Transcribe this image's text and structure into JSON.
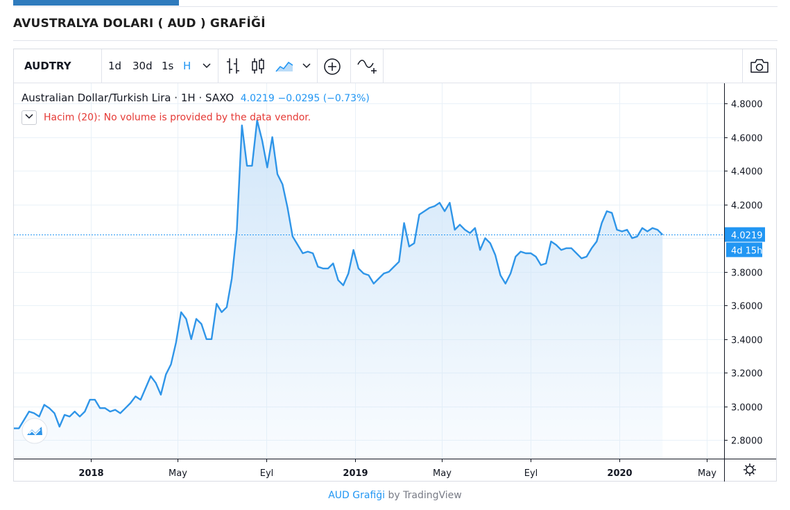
{
  "page": {
    "title": "AVUSTRALYA DOLARI ( AUD ) GRAFİĞİ"
  },
  "toolbar": {
    "symbol": "AUDTRY",
    "intervals": [
      "1d",
      "30d",
      "1s",
      "H"
    ],
    "active_interval": "H"
  },
  "legend": {
    "name": "Australian Dollar/Turkish Lira",
    "sep1": "·",
    "interval": "1H",
    "sep2": "·",
    "exchange": "SAXO",
    "last": "4.0219",
    "change": "−0.0295 (−0.73%)"
  },
  "volume": {
    "label": "Hacim (20): No volume is provided by the data vendor.",
    "toggle_icon": "chevron-down"
  },
  "attribution": {
    "link": "AUD Grafiği",
    "by": " by TradingView"
  },
  "colors": {
    "line": "#2f95e8",
    "accent": "#2196f3",
    "warning": "#e53935",
    "grid": "#e9f1f8"
  },
  "chart_data": {
    "type": "area",
    "title": "",
    "xlabel": "",
    "ylabel": "",
    "x_axis": {
      "ticks": [
        {
          "date": "2018-01-01",
          "label": "2018",
          "bold": true
        },
        {
          "date": "2018-05-01",
          "label": "May",
          "bold": false
        },
        {
          "date": "2018-09-01",
          "label": "Eyl",
          "bold": false
        },
        {
          "date": "2019-01-01",
          "label": "2019",
          "bold": true
        },
        {
          "date": "2019-05-01",
          "label": "May",
          "bold": false
        },
        {
          "date": "2019-09-01",
          "label": "Eyl",
          "bold": false
        },
        {
          "date": "2020-01-01",
          "label": "2020",
          "bold": true
        },
        {
          "date": "2020-05-01",
          "label": "May",
          "bold": false
        }
      ],
      "range": [
        "2017-09-17",
        "2020-05-25"
      ]
    },
    "y_axis": {
      "ticks": [
        "2.8000",
        "3.0000",
        "3.2000",
        "3.4000",
        "3.6000",
        "3.8000",
        "4.0000",
        "4.2000",
        "4.4000",
        "4.6000",
        "4.8000"
      ],
      "range": [
        2.69,
        4.92
      ]
    },
    "last_value": {
      "value": 4.0219,
      "label": "4.0219",
      "countdown": "4d 15h"
    },
    "series": [
      {
        "points": [
          [
            "2017-09-17",
            2.87
          ],
          [
            "2017-09-24",
            2.87
          ],
          [
            "2017-10-01",
            2.92
          ],
          [
            "2017-10-08",
            2.97
          ],
          [
            "2017-10-15",
            2.96
          ],
          [
            "2017-10-22",
            2.94
          ],
          [
            "2017-10-29",
            3.01
          ],
          [
            "2017-11-05",
            2.99
          ],
          [
            "2017-11-12",
            2.96
          ],
          [
            "2017-11-19",
            2.88
          ],
          [
            "2017-11-26",
            2.95
          ],
          [
            "2017-12-03",
            2.94
          ],
          [
            "2017-12-10",
            2.97
          ],
          [
            "2017-12-17",
            2.94
          ],
          [
            "2017-12-24",
            2.97
          ],
          [
            "2017-12-31",
            3.04
          ],
          [
            "2018-01-07",
            3.04
          ],
          [
            "2018-01-14",
            2.99
          ],
          [
            "2018-01-21",
            2.99
          ],
          [
            "2018-01-28",
            2.97
          ],
          [
            "2018-02-04",
            2.98
          ],
          [
            "2018-02-11",
            2.96
          ],
          [
            "2018-02-18",
            2.99
          ],
          [
            "2018-02-25",
            3.02
          ],
          [
            "2018-03-04",
            3.06
          ],
          [
            "2018-03-11",
            3.04
          ],
          [
            "2018-03-18",
            3.11
          ],
          [
            "2018-03-25",
            3.18
          ],
          [
            "2018-04-01",
            3.14
          ],
          [
            "2018-04-08",
            3.07
          ],
          [
            "2018-04-15",
            3.19
          ],
          [
            "2018-04-22",
            3.25
          ],
          [
            "2018-04-29",
            3.38
          ],
          [
            "2018-05-06",
            3.56
          ],
          [
            "2018-05-13",
            3.52
          ],
          [
            "2018-05-20",
            3.4
          ],
          [
            "2018-05-27",
            3.52
          ],
          [
            "2018-06-03",
            3.49
          ],
          [
            "2018-06-10",
            3.4
          ],
          [
            "2018-06-17",
            3.4
          ],
          [
            "2018-06-24",
            3.61
          ],
          [
            "2018-07-01",
            3.56
          ],
          [
            "2018-07-08",
            3.59
          ],
          [
            "2018-07-15",
            3.76
          ],
          [
            "2018-07-22",
            4.05
          ],
          [
            "2018-07-29",
            4.67
          ],
          [
            "2018-08-05",
            4.43
          ],
          [
            "2018-08-12",
            4.43
          ],
          [
            "2018-08-19",
            4.7
          ],
          [
            "2018-08-26",
            4.58
          ],
          [
            "2018-09-02",
            4.42
          ],
          [
            "2018-09-09",
            4.6
          ],
          [
            "2018-09-16",
            4.38
          ],
          [
            "2018-09-23",
            4.32
          ],
          [
            "2018-09-30",
            4.18
          ],
          [
            "2018-10-07",
            4.01
          ],
          [
            "2018-10-14",
            3.96
          ],
          [
            "2018-10-21",
            3.91
          ],
          [
            "2018-10-28",
            3.92
          ],
          [
            "2018-11-04",
            3.91
          ],
          [
            "2018-11-11",
            3.83
          ],
          [
            "2018-11-18",
            3.82
          ],
          [
            "2018-11-25",
            3.82
          ],
          [
            "2018-12-02",
            3.85
          ],
          [
            "2018-12-09",
            3.75
          ],
          [
            "2018-12-16",
            3.72
          ],
          [
            "2018-12-23",
            3.79
          ],
          [
            "2018-12-30",
            3.93
          ],
          [
            "2019-01-06",
            3.82
          ],
          [
            "2019-01-13",
            3.79
          ],
          [
            "2019-01-20",
            3.78
          ],
          [
            "2019-01-27",
            3.73
          ],
          [
            "2019-02-03",
            3.76
          ],
          [
            "2019-02-10",
            3.79
          ],
          [
            "2019-02-17",
            3.8
          ],
          [
            "2019-02-24",
            3.83
          ],
          [
            "2019-03-03",
            3.86
          ],
          [
            "2019-03-10",
            4.09
          ],
          [
            "2019-03-17",
            3.95
          ],
          [
            "2019-03-24",
            3.97
          ],
          [
            "2019-03-31",
            4.14
          ],
          [
            "2019-04-07",
            4.16
          ],
          [
            "2019-04-14",
            4.18
          ],
          [
            "2019-04-21",
            4.19
          ],
          [
            "2019-04-28",
            4.21
          ],
          [
            "2019-05-05",
            4.16
          ],
          [
            "2019-05-12",
            4.21
          ],
          [
            "2019-05-19",
            4.05
          ],
          [
            "2019-05-26",
            4.08
          ],
          [
            "2019-06-02",
            4.05
          ],
          [
            "2019-06-09",
            4.03
          ],
          [
            "2019-06-16",
            4.06
          ],
          [
            "2019-06-23",
            3.93
          ],
          [
            "2019-06-30",
            4.0
          ],
          [
            "2019-07-07",
            3.97
          ],
          [
            "2019-07-14",
            3.9
          ],
          [
            "2019-07-21",
            3.78
          ],
          [
            "2019-07-28",
            3.73
          ],
          [
            "2019-08-04",
            3.79
          ],
          [
            "2019-08-11",
            3.89
          ],
          [
            "2019-08-18",
            3.92
          ],
          [
            "2019-08-25",
            3.91
          ],
          [
            "2019-09-01",
            3.91
          ],
          [
            "2019-09-08",
            3.89
          ],
          [
            "2019-09-15",
            3.84
          ],
          [
            "2019-09-22",
            3.85
          ],
          [
            "2019-09-29",
            3.98
          ],
          [
            "2019-10-06",
            3.96
          ],
          [
            "2019-10-13",
            3.93
          ],
          [
            "2019-10-20",
            3.94
          ],
          [
            "2019-10-27",
            3.94
          ],
          [
            "2019-11-03",
            3.91
          ],
          [
            "2019-11-10",
            3.88
          ],
          [
            "2019-11-17",
            3.89
          ],
          [
            "2019-11-24",
            3.94
          ],
          [
            "2019-12-01",
            3.98
          ],
          [
            "2019-12-08",
            4.09
          ],
          [
            "2019-12-15",
            4.16
          ],
          [
            "2019-12-22",
            4.15
          ],
          [
            "2019-12-29",
            4.05
          ],
          [
            "2020-01-05",
            4.04
          ],
          [
            "2020-01-12",
            4.05
          ],
          [
            "2020-01-19",
            4.0
          ],
          [
            "2020-01-26",
            4.01
          ],
          [
            "2020-02-02",
            4.06
          ],
          [
            "2020-02-09",
            4.04
          ],
          [
            "2020-02-16",
            4.06
          ],
          [
            "2020-02-23",
            4.05
          ],
          [
            "2020-03-01",
            4.02
          ]
        ]
      }
    ],
    "grid": true,
    "legend": "top-left"
  }
}
